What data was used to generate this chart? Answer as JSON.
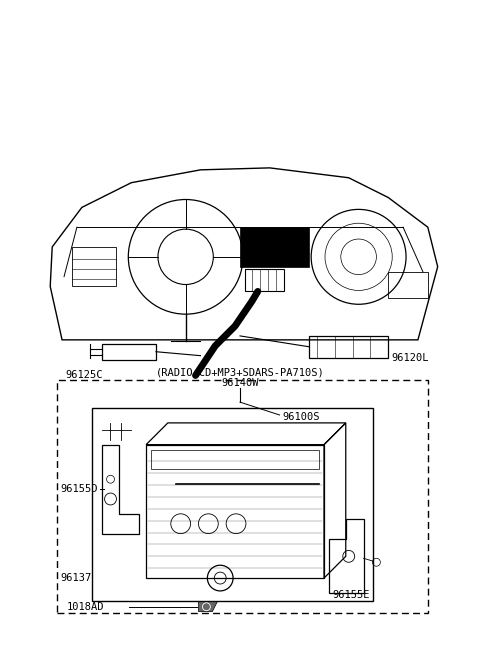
{
  "background_color": "#ffffff",
  "fig_width": 4.8,
  "fig_height": 6.56,
  "dpi": 100,
  "labels": {
    "96125C": "96125C",
    "96120L": "96120L",
    "radio_label": "(RADIO+CD+MP3+SDARS-PA710S)",
    "96140W": "96140W",
    "96100S": "96100S",
    "96155D": "96155D",
    "96137": "96137",
    "96155E": "96155E",
    "1018AD": "1018AD"
  }
}
